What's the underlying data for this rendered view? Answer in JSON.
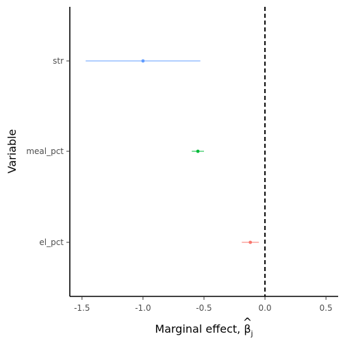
{
  "chart_data": {
    "type": "scatter",
    "subtype": "coefficient-errorbar",
    "title": "",
    "xlabel": "Marginal effect, ",
    "xlabel_symbol": "β",
    "xlabel_subscript": "j",
    "xlabel_accent": "^",
    "ylabel": "Variable",
    "xlim": [
      -1.6,
      0.6
    ],
    "xticks": [
      -1.5,
      -1.0,
      -0.5,
      0.0,
      0.5
    ],
    "xtick_labels": [
      "-1.5",
      "-1.0",
      "-0.5",
      "0.0",
      "0.5"
    ],
    "reference_line": {
      "x": 0,
      "style": "dashed",
      "color": "#000000"
    },
    "grid": false,
    "legend": "none",
    "series": [
      {
        "name": "str",
        "estimate": -1.0,
        "lower": -1.47,
        "upper": -0.53,
        "color": "#619CFF"
      },
      {
        "name": "meal_pct",
        "estimate": -0.55,
        "lower": -0.6,
        "upper": -0.5,
        "color": "#00BA38"
      },
      {
        "name": "el_pct",
        "estimate": -0.12,
        "lower": -0.19,
        "upper": -0.05,
        "color": "#F8766D"
      }
    ]
  }
}
